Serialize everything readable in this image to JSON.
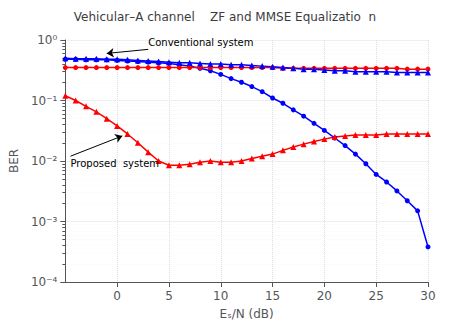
{
  "chart_data": {
    "type": "line",
    "title": "Vehicular–A channel    ZF and MMSE Equalizatio  n",
    "xlabel": "Eₛ/N (dB)",
    "ylabel": "BER",
    "log": "y",
    "grid": true,
    "xlim": [
      -5,
      30
    ],
    "ylim": [
      0.0001,
      1
    ],
    "xticks": [
      0,
      5,
      10,
      15,
      20,
      25,
      30
    ],
    "yticks": [
      {
        "value": 0.0001,
        "label": "10⁻⁴"
      },
      {
        "value": 0.001,
        "label": "10⁻³"
      },
      {
        "value": 0.01,
        "label": "10⁻²"
      },
      {
        "value": 0.1,
        "label": "10⁻¹"
      },
      {
        "value": 1,
        "label": "10⁰"
      }
    ],
    "x": [
      -5,
      -4,
      -3,
      -2,
      -1,
      0,
      1,
      2,
      3,
      4,
      5,
      6,
      7,
      8,
      9,
      10,
      11,
      12,
      13,
      14,
      15,
      16,
      17,
      18,
      19,
      20,
      21,
      22,
      23,
      24,
      25,
      26,
      27,
      28,
      29,
      30
    ],
    "series": [
      {
        "color": "#0000ff",
        "marker": "circle",
        "values": [
          0.48,
          0.48,
          0.47,
          0.47,
          0.47,
          0.46,
          0.45,
          0.44,
          0.43,
          0.42,
          0.41,
          0.39,
          0.37,
          0.34,
          0.31,
          0.27,
          0.23,
          0.2,
          0.17,
          0.14,
          0.11,
          0.09,
          0.07,
          0.055,
          0.042,
          0.032,
          0.024,
          0.018,
          0.013,
          0.009,
          0.006,
          0.0045,
          0.0032,
          0.0022,
          0.0015,
          0.00038
        ]
      },
      {
        "color": "#ff0000",
        "marker": "circle",
        "values": [
          0.35,
          0.35,
          0.35,
          0.35,
          0.35,
          0.35,
          0.35,
          0.35,
          0.35,
          0.35,
          0.35,
          0.35,
          0.35,
          0.35,
          0.35,
          0.35,
          0.35,
          0.35,
          0.35,
          0.35,
          0.35,
          0.34,
          0.34,
          0.34,
          0.34,
          0.34,
          0.34,
          0.34,
          0.34,
          0.34,
          0.34,
          0.34,
          0.34,
          0.33,
          0.33,
          0.33
        ]
      },
      {
        "color": "#ff0000",
        "marker": "triangle",
        "values": [
          0.12,
          0.1,
          0.08,
          0.065,
          0.05,
          0.038,
          0.028,
          0.02,
          0.014,
          0.01,
          0.0085,
          0.0085,
          0.0088,
          0.0095,
          0.01,
          0.0095,
          0.0095,
          0.01,
          0.011,
          0.012,
          0.013,
          0.015,
          0.017,
          0.019,
          0.021,
          0.023,
          0.025,
          0.026,
          0.027,
          0.027,
          0.027,
          0.028,
          0.028,
          0.028,
          0.028,
          0.028
        ]
      },
      {
        "color": "#0000ff",
        "marker": "triangle",
        "values": [
          0.5,
          0.49,
          0.49,
          0.49,
          0.48,
          0.48,
          0.47,
          0.46,
          0.45,
          0.44,
          0.43,
          0.42,
          0.42,
          0.41,
          0.4,
          0.4,
          0.39,
          0.39,
          0.38,
          0.37,
          0.36,
          0.35,
          0.34,
          0.33,
          0.33,
          0.32,
          0.31,
          0.31,
          0.3,
          0.3,
          0.3,
          0.3,
          0.29,
          0.29,
          0.29,
          0.29
        ]
      }
    ],
    "annotations": [
      {
        "text": "Conventional system",
        "x": 3.0,
        "y": 0.7,
        "arrow_x": -1.0,
        "arrow_y": 0.6
      },
      {
        "text": "Proposed  system",
        "x": -4.5,
        "y": 0.012,
        "arrow_x": 0.5,
        "arrow_y": 0.026
      }
    ]
  }
}
